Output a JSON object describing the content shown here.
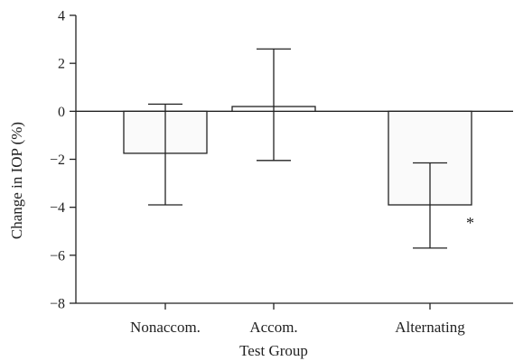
{
  "chart_data": {
    "type": "bar",
    "categories": [
      "Nonaccom.",
      "Accom.",
      "Alternating"
    ],
    "values": [
      -1.75,
      0.2,
      -3.9
    ],
    "error_upper": [
      0.3,
      2.6,
      -2.15
    ],
    "error_lower": [
      -3.9,
      -2.05,
      -5.7
    ],
    "xlabel": "Test Group",
    "ylabel": "Change in IOP (%)",
    "ylim": [
      -8,
      4
    ],
    "yticks": [
      4,
      2,
      0,
      -2,
      -4,
      -6,
      -8
    ],
    "ytick_labels": [
      "4",
      "2",
      "0",
      "−2",
      "−4",
      "−6",
      "−8"
    ],
    "annotations": [
      {
        "category": "Alternating",
        "text": "*"
      }
    ],
    "grid": false,
    "colors": {
      "bar_fill": "#fafafa",
      "ink": "#222222"
    }
  }
}
